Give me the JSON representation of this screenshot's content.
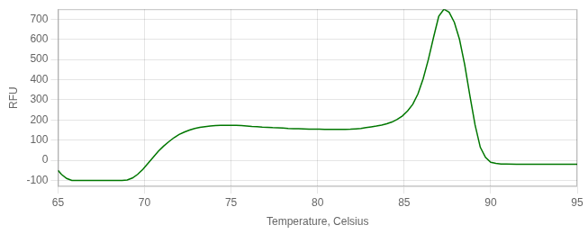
{
  "chart_data": {
    "type": "line",
    "xlabel": "Temperature, Celsius",
    "ylabel": "RFU",
    "x": [
      65.0,
      65.2,
      65.5,
      65.8,
      66.0,
      66.3,
      66.6,
      66.9,
      67.2,
      67.5,
      67.8,
      68.1,
      68.4,
      68.7,
      69.0,
      69.3,
      69.6,
      69.9,
      70.2,
      70.5,
      70.8,
      71.1,
      71.4,
      71.7,
      72.0,
      72.3,
      72.6,
      72.9,
      73.2,
      73.5,
      73.8,
      74.1,
      74.4,
      74.7,
      75.0,
      75.3,
      75.6,
      75.9,
      76.2,
      76.5,
      76.8,
      77.1,
      77.4,
      77.7,
      78.0,
      78.3,
      78.6,
      78.9,
      79.2,
      79.5,
      79.8,
      80.1,
      80.4,
      80.7,
      81.0,
      81.3,
      81.6,
      81.9,
      82.2,
      82.5,
      82.8,
      83.1,
      83.4,
      83.7,
      84.0,
      84.3,
      84.6,
      84.9,
      85.2,
      85.5,
      85.8,
      86.1,
      86.4,
      86.7,
      87.0,
      87.3,
      87.6,
      87.9,
      88.2,
      88.5,
      88.8,
      89.1,
      89.4,
      89.7,
      90.0,
      90.3,
      90.6,
      90.9,
      91.5,
      92.0,
      92.5,
      93.0,
      93.5,
      94.0,
      94.5,
      95.0
    ],
    "values": [
      -50,
      -70,
      -90,
      -100,
      -100,
      -100,
      -100,
      -100,
      -100,
      -100,
      -100,
      -100,
      -100,
      -100,
      -98,
      -88,
      -70,
      -45,
      -15,
      15,
      45,
      70,
      92,
      112,
      128,
      140,
      150,
      158,
      163,
      167,
      170,
      172,
      173,
      174,
      174,
      173,
      172,
      170,
      168,
      167,
      165,
      164,
      162,
      161,
      160,
      158,
      157,
      157,
      156,
      155,
      154,
      154,
      153,
      153,
      153,
      153,
      153,
      154,
      156,
      158,
      162,
      166,
      170,
      175,
      181,
      190,
      203,
      220,
      245,
      278,
      330,
      405,
      500,
      610,
      715,
      750,
      735,
      685,
      600,
      475,
      320,
      175,
      65,
      15,
      -10,
      -15,
      -18,
      -18,
      -20,
      -20,
      -20,
      -20,
      -20,
      -20,
      -20,
      -20
    ],
    "color": "#007700",
    "xlim": [
      65,
      95
    ],
    "ylim": [
      -130,
      750
    ],
    "xticks": [
      65,
      70,
      75,
      80,
      85,
      90,
      95
    ],
    "yticks": [
      -100,
      0,
      100,
      200,
      300,
      400,
      500,
      600,
      700
    ],
    "grid": true
  }
}
